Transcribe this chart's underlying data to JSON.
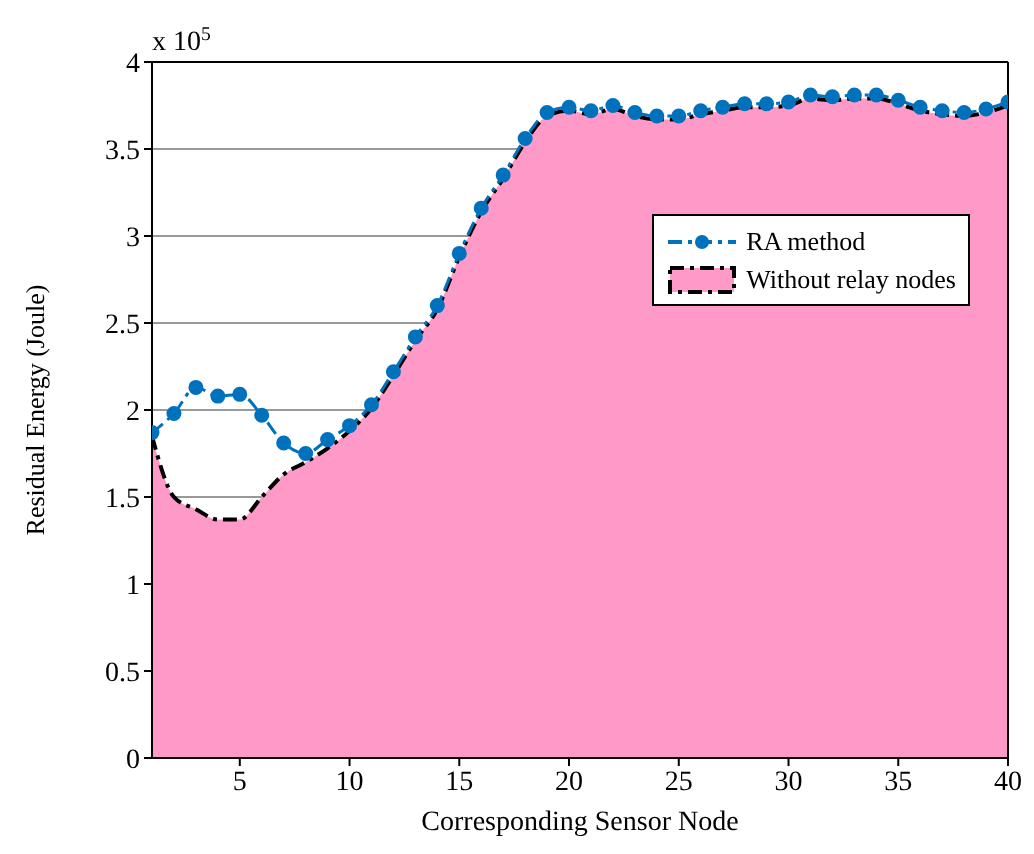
{
  "chart_data": {
    "type": "line",
    "xlabel": "Corresponding Sensor Node",
    "ylabel": "Residual Energy (Joule)",
    "annotations": [
      "x 10$^{5}$"
    ],
    "x": [
      1,
      2,
      3,
      4,
      5,
      6,
      7,
      8,
      9,
      10,
      11,
      12,
      13,
      14,
      15,
      16,
      17,
      18,
      19,
      20,
      21,
      22,
      23,
      24,
      25,
      26,
      27,
      28,
      29,
      30,
      31,
      32,
      33,
      34,
      35,
      36,
      37,
      38,
      39,
      40
    ],
    "series": [
      {
        "name": "RA method",
        "color": "#0072bd",
        "marker": "circle",
        "line_style": "dashed",
        "values": [
          1.87,
          1.98,
          2.13,
          2.08,
          2.09,
          1.97,
          1.81,
          1.75,
          1.83,
          1.91,
          2.03,
          2.22,
          2.42,
          2.6,
          2.9,
          3.16,
          3.35,
          3.56,
          3.71,
          3.74,
          3.72,
          3.75,
          3.71,
          3.69,
          3.69,
          3.72,
          3.74,
          3.76,
          3.76,
          3.77,
          3.81,
          3.8,
          3.81,
          3.81,
          3.78,
          3.74,
          3.72,
          3.71,
          3.73,
          3.77
        ]
      },
      {
        "name": "Without relay nodes",
        "type": "area",
        "color": "#ff99c8",
        "line_style": "dashed",
        "values": [
          1.85,
          1.5,
          1.43,
          1.37,
          1.37,
          1.5,
          1.63,
          1.7,
          1.78,
          1.88,
          2.01,
          2.2,
          2.4,
          2.58,
          2.88,
          3.14,
          3.33,
          3.54,
          3.69,
          3.72,
          3.7,
          3.73,
          3.69,
          3.67,
          3.67,
          3.7,
          3.72,
          3.74,
          3.74,
          3.75,
          3.79,
          3.78,
          3.79,
          3.79,
          3.76,
          3.72,
          3.7,
          3.69,
          3.71,
          3.75
        ]
      }
    ],
    "xlim": [
      1,
      40
    ],
    "xticks": [
      5,
      10,
      15,
      20,
      25,
      30,
      35,
      40
    ],
    "ylim": [
      0,
      4
    ],
    "yticks": [
      0,
      0.5,
      1,
      1.5,
      2,
      2.5,
      3,
      3.5,
      4
    ],
    "grid": "y",
    "legend": "right"
  }
}
